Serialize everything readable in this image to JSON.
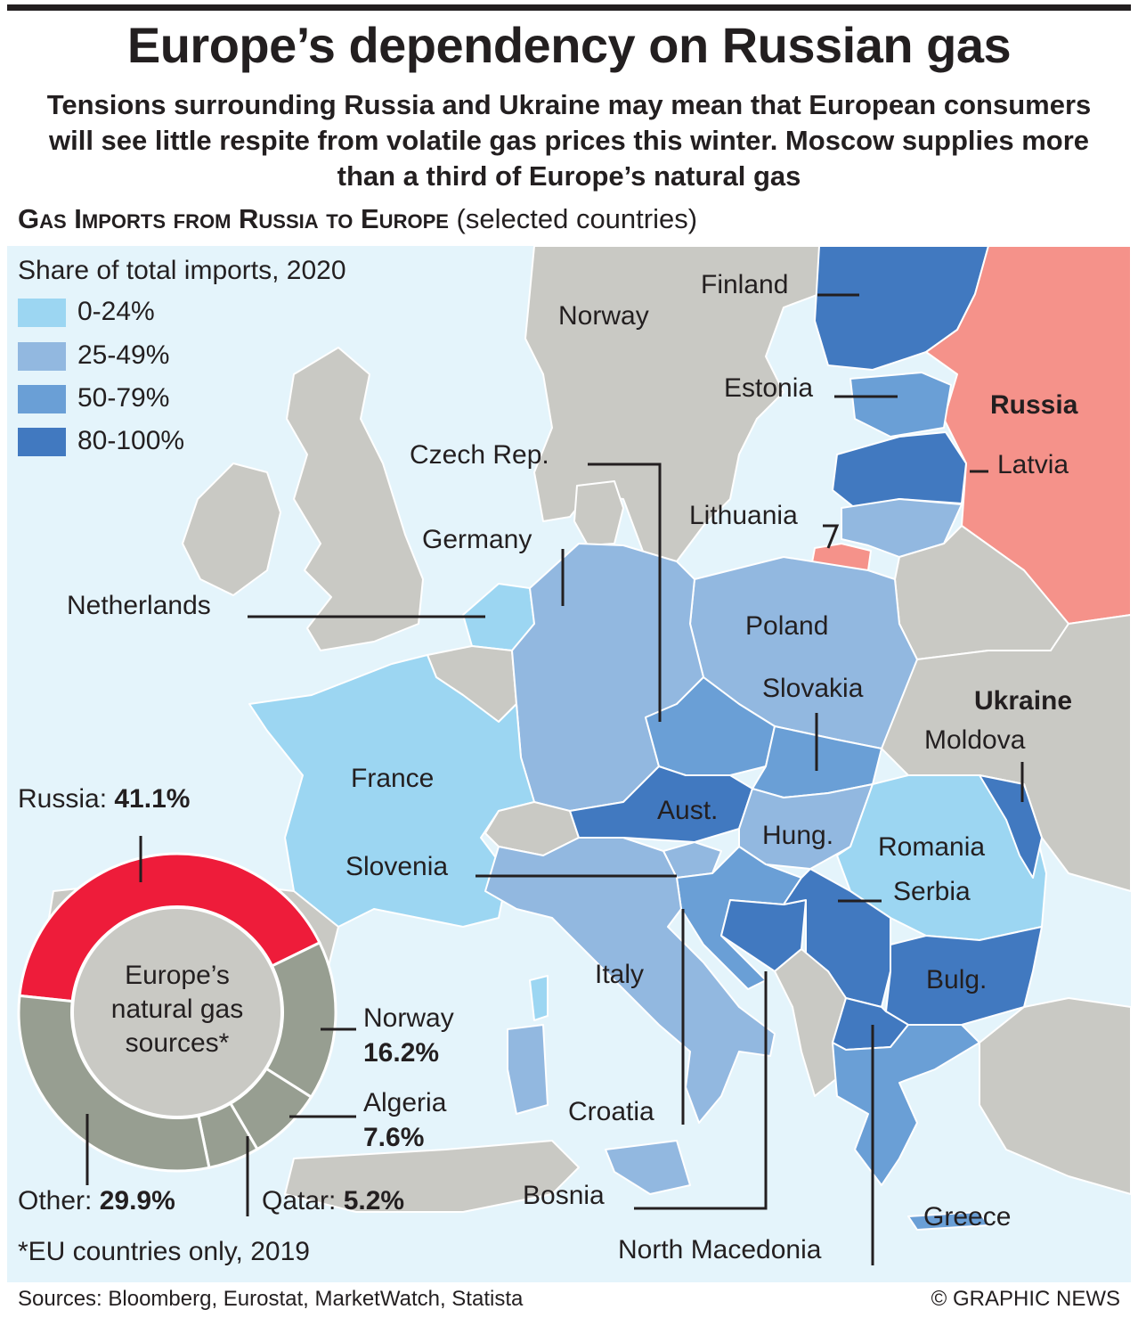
{
  "title": "Europe’s dependency on Russian gas",
  "subtitle": "Tensions surrounding Russia and Ukraine may mean that European consumers will see little respite from volatile gas prices this winter. Moscow supplies more than a third of Europe’s natural gas",
  "section": {
    "title": "Gas Imports from Russia to Europe",
    "note": "(selected countries)"
  },
  "legend": {
    "title": "Share of total imports, 2020",
    "items": [
      {
        "label": "0-24%",
        "color": "#9cd6f2"
      },
      {
        "label": "25-49%",
        "color": "#92b8e0"
      },
      {
        "label": "50-79%",
        "color": "#6a9fd6"
      },
      {
        "label": "80-100%",
        "color": "#4179c0"
      }
    ]
  },
  "colors": {
    "sea": "#e4f4fb",
    "land_other": "#c9c9c4",
    "russia": "#f5928a",
    "donut_russia": "#ee1c3a",
    "donut_other": "#979e91",
    "donut_hole": "#c9c9c4"
  },
  "countries": [
    {
      "name": "Finland",
      "share": "80-100%"
    },
    {
      "name": "Norway",
      "share": null
    },
    {
      "name": "Estonia",
      "share": "50-79%"
    },
    {
      "name": "Russia",
      "share": null
    },
    {
      "name": "Latvia",
      "share": "80-100%"
    },
    {
      "name": "Czech Rep.",
      "share": "50-79%"
    },
    {
      "name": "Lithuania",
      "share": "25-49%"
    },
    {
      "name": "Germany",
      "share": "25-49%"
    },
    {
      "name": "Netherlands",
      "share": "0-24%"
    },
    {
      "name": "Poland",
      "share": "25-49%"
    },
    {
      "name": "Slovakia",
      "share": "50-79%"
    },
    {
      "name": "Ukraine",
      "share": null
    },
    {
      "name": "Moldova",
      "share": "80-100%"
    },
    {
      "name": "France",
      "share": "0-24%"
    },
    {
      "name": "Aust.",
      "share": "80-100%"
    },
    {
      "name": "Hung.",
      "share": "25-49%"
    },
    {
      "name": "Romania",
      "share": "0-24%"
    },
    {
      "name": "Slovenia",
      "share": "25-49%"
    },
    {
      "name": "Serbia",
      "share": "80-100%"
    },
    {
      "name": "Italy",
      "share": "25-49%"
    },
    {
      "name": "Bulg.",
      "share": "80-100%"
    },
    {
      "name": "Croatia",
      "share": "50-79%"
    },
    {
      "name": "Bosnia",
      "share": "80-100%"
    },
    {
      "name": "Greece",
      "share": "50-79%"
    },
    {
      "name": "North Macedonia",
      "share": "80-100%"
    }
  ],
  "donut": {
    "center_label": [
      "Europe’s",
      "natural gas",
      "sources*"
    ],
    "segments": [
      {
        "name": "Russia",
        "value": 41.1,
        "label": "41.1%",
        "color": "#ee1c3a"
      },
      {
        "name": "Norway",
        "value": 16.2,
        "label": "16.2%",
        "color": "#979e91"
      },
      {
        "name": "Algeria",
        "value": 7.6,
        "label": "7.6%",
        "color": "#979e91"
      },
      {
        "name": "Qatar",
        "value": 5.2,
        "label": "5.2%",
        "color": "#979e91"
      },
      {
        "name": "Other",
        "value": 29.9,
        "label": "29.9%",
        "color": "#979e91"
      }
    ]
  },
  "footnote": "*EU countries only, 2019",
  "sources": "Sources: Bloomberg, Eurostat, MarketWatch, Statista",
  "credit": "© GRAPHIC NEWS"
}
